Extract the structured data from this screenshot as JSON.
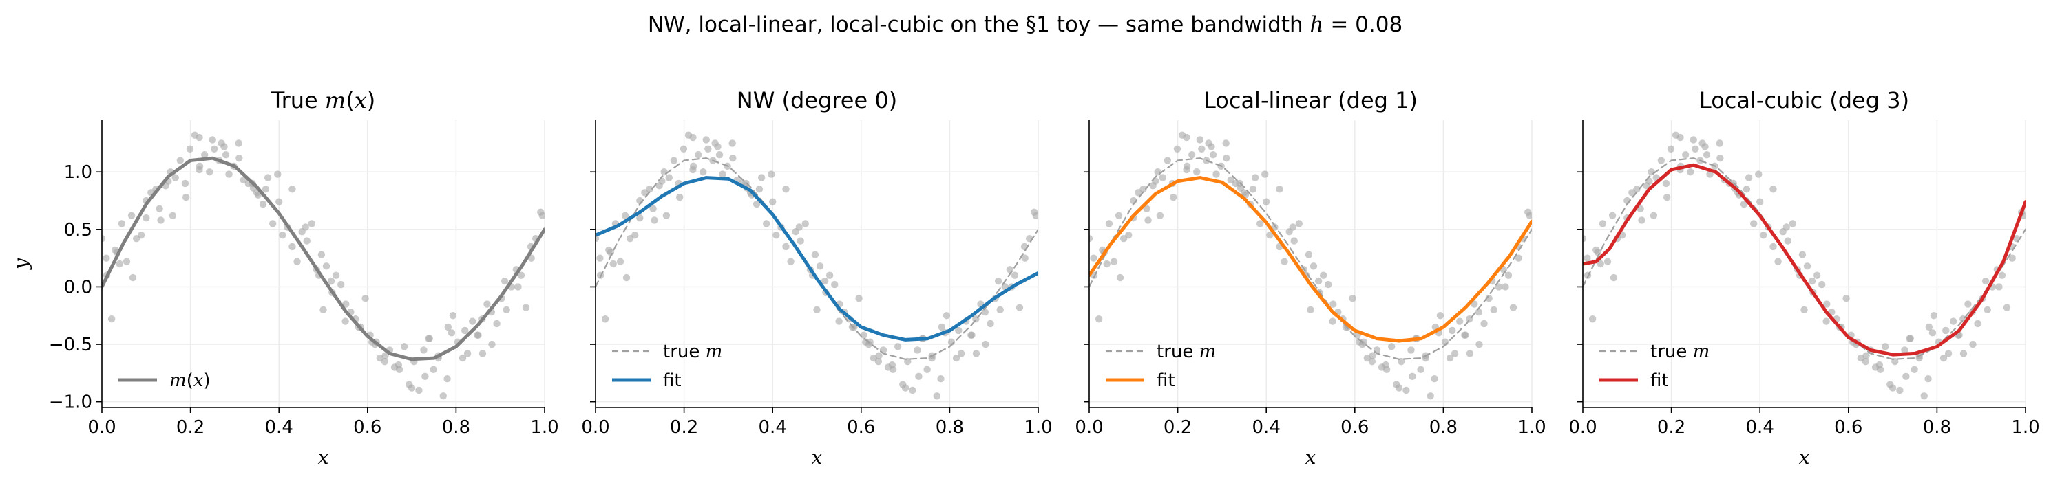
{
  "figure": {
    "suptitle": "NW, local-linear, local-cubic on the §1 toy — same bandwidth h = 0.08"
  },
  "chart_data": [
    {
      "type": "line",
      "title": "True m(x)",
      "xlabel": "x",
      "ylabel": "y",
      "xlim": [
        0,
        1
      ],
      "ylim": [
        -1.05,
        1.45
      ],
      "xticks": [
        "0.0",
        "0.2",
        "0.4",
        "0.6",
        "0.8",
        "1.0"
      ],
      "yticks": [
        "−1.0",
        "−0.5",
        "0.0",
        "0.5",
        "1.0"
      ],
      "grid": true,
      "legend_position": "lower-left",
      "series": [
        {
          "name": "m(x)",
          "color": "#808080",
          "style": "solid",
          "x": [
            0,
            0.05,
            0.1,
            0.15,
            0.2,
            0.25,
            0.3,
            0.35,
            0.4,
            0.45,
            0.5,
            0.55,
            0.6,
            0.65,
            0.7,
            0.75,
            0.8,
            0.85,
            0.9,
            0.95,
            1.0
          ],
          "y": [
            0.0,
            0.39,
            0.72,
            0.96,
            1.1,
            1.12,
            1.05,
            0.87,
            0.64,
            0.36,
            0.07,
            -0.21,
            -0.43,
            -0.58,
            -0.63,
            -0.62,
            -0.52,
            -0.33,
            -0.09,
            0.19,
            0.5
          ]
        }
      ]
    },
    {
      "type": "line",
      "title": "NW (degree 0)",
      "xlabel": "x",
      "xlim": [
        0,
        1
      ],
      "ylim": [
        -1.05,
        1.45
      ],
      "xticks": [
        "0.0",
        "0.2",
        "0.4",
        "0.6",
        "0.8",
        "1.0"
      ],
      "grid": true,
      "legend_position": "lower-left",
      "series": [
        {
          "name": "true m",
          "color": "#a0a0a0",
          "style": "dashed",
          "x": [
            0,
            0.05,
            0.1,
            0.15,
            0.2,
            0.25,
            0.3,
            0.35,
            0.4,
            0.45,
            0.5,
            0.55,
            0.6,
            0.65,
            0.7,
            0.75,
            0.8,
            0.85,
            0.9,
            0.95,
            1.0
          ],
          "y": [
            0.0,
            0.39,
            0.72,
            0.96,
            1.1,
            1.12,
            1.05,
            0.87,
            0.64,
            0.36,
            0.07,
            -0.21,
            -0.43,
            -0.58,
            -0.63,
            -0.62,
            -0.52,
            -0.33,
            -0.09,
            0.19,
            0.5
          ]
        },
        {
          "name": "fit",
          "color": "#1f77b4",
          "style": "solid",
          "x": [
            0,
            0.05,
            0.1,
            0.15,
            0.2,
            0.25,
            0.3,
            0.35,
            0.4,
            0.45,
            0.5,
            0.55,
            0.6,
            0.65,
            0.7,
            0.75,
            0.8,
            0.85,
            0.9,
            0.95,
            1.0
          ],
          "y": [
            0.45,
            0.53,
            0.65,
            0.79,
            0.9,
            0.95,
            0.94,
            0.84,
            0.63,
            0.36,
            0.07,
            -0.19,
            -0.35,
            -0.42,
            -0.46,
            -0.45,
            -0.38,
            -0.25,
            -0.1,
            0.02,
            0.12
          ]
        }
      ]
    },
    {
      "type": "line",
      "title": "Local-linear (deg 1)",
      "xlabel": "x",
      "xlim": [
        0,
        1
      ],
      "ylim": [
        -1.05,
        1.45
      ],
      "xticks": [
        "0.0",
        "0.2",
        "0.4",
        "0.6",
        "0.8",
        "1.0"
      ],
      "grid": true,
      "legend_position": "lower-left",
      "series": [
        {
          "name": "true m",
          "color": "#a0a0a0",
          "style": "dashed",
          "x": [
            0,
            0.05,
            0.1,
            0.15,
            0.2,
            0.25,
            0.3,
            0.35,
            0.4,
            0.45,
            0.5,
            0.55,
            0.6,
            0.65,
            0.7,
            0.75,
            0.8,
            0.85,
            0.9,
            0.95,
            1.0
          ],
          "y": [
            0.0,
            0.39,
            0.72,
            0.96,
            1.1,
            1.12,
            1.05,
            0.87,
            0.64,
            0.36,
            0.07,
            -0.21,
            -0.43,
            -0.58,
            -0.63,
            -0.62,
            -0.52,
            -0.33,
            -0.09,
            0.19,
            0.5
          ]
        },
        {
          "name": "fit",
          "color": "#ff7f0e",
          "style": "solid",
          "x": [
            0,
            0.05,
            0.1,
            0.15,
            0.2,
            0.25,
            0.3,
            0.35,
            0.4,
            0.45,
            0.5,
            0.55,
            0.6,
            0.65,
            0.7,
            0.75,
            0.8,
            0.85,
            0.9,
            0.95,
            1.0
          ],
          "y": [
            0.1,
            0.38,
            0.62,
            0.81,
            0.92,
            0.95,
            0.91,
            0.77,
            0.56,
            0.3,
            0.02,
            -0.22,
            -0.38,
            -0.45,
            -0.47,
            -0.45,
            -0.35,
            -0.18,
            0.03,
            0.27,
            0.57
          ]
        }
      ]
    },
    {
      "type": "line",
      "title": "Local-cubic (deg 3)",
      "xlabel": "x",
      "xlim": [
        0,
        1
      ],
      "ylim": [
        -1.05,
        1.45
      ],
      "xticks": [
        "0.0",
        "0.2",
        "0.4",
        "0.6",
        "0.8",
        "1.0"
      ],
      "grid": true,
      "legend_position": "lower-left",
      "series": [
        {
          "name": "true m",
          "color": "#a0a0a0",
          "style": "dashed",
          "x": [
            0,
            0.05,
            0.1,
            0.15,
            0.2,
            0.25,
            0.3,
            0.35,
            0.4,
            0.45,
            0.5,
            0.55,
            0.6,
            0.65,
            0.7,
            0.75,
            0.8,
            0.85,
            0.9,
            0.95,
            1.0
          ],
          "y": [
            0.0,
            0.39,
            0.72,
            0.96,
            1.1,
            1.12,
            1.05,
            0.87,
            0.64,
            0.36,
            0.07,
            -0.21,
            -0.43,
            -0.58,
            -0.63,
            -0.62,
            -0.52,
            -0.33,
            -0.09,
            0.19,
            0.5
          ]
        },
        {
          "name": "fit",
          "color": "#d62728",
          "style": "solid",
          "x": [
            0,
            0.03,
            0.06,
            0.1,
            0.15,
            0.2,
            0.25,
            0.3,
            0.35,
            0.4,
            0.45,
            0.5,
            0.55,
            0.6,
            0.65,
            0.7,
            0.75,
            0.8,
            0.85,
            0.9,
            0.95,
            1.0
          ],
          "y": [
            0.2,
            0.22,
            0.33,
            0.58,
            0.85,
            1.02,
            1.06,
            1.0,
            0.84,
            0.62,
            0.35,
            0.06,
            -0.22,
            -0.44,
            -0.55,
            -0.59,
            -0.58,
            -0.52,
            -0.38,
            -0.12,
            0.22,
            0.74
          ]
        }
      ]
    }
  ],
  "scatter": {
    "color": "#aaaaaa",
    "x": [
      0.0,
      0.011,
      0.022,
      0.034,
      0.045,
      0.056,
      0.067,
      0.078,
      0.089,
      0.1,
      0.111,
      0.122,
      0.133,
      0.144,
      0.155,
      0.166,
      0.177,
      0.188,
      0.199,
      0.21,
      0.221,
      0.232,
      0.243,
      0.254,
      0.265,
      0.276,
      0.287,
      0.298,
      0.309,
      0.32,
      0.331,
      0.342,
      0.353,
      0.364,
      0.375,
      0.386,
      0.397,
      0.408,
      0.419,
      0.43,
      0.441,
      0.452,
      0.463,
      0.474,
      0.485,
      0.496,
      0.507,
      0.518,
      0.529,
      0.54,
      0.551,
      0.562,
      0.573,
      0.584,
      0.595,
      0.606,
      0.617,
      0.628,
      0.639,
      0.65,
      0.661,
      0.672,
      0.683,
      0.694,
      0.705,
      0.716,
      0.727,
      0.738,
      0.749,
      0.76,
      0.771,
      0.782,
      0.793,
      0.804,
      0.815,
      0.826,
      0.837,
      0.848,
      0.859,
      0.87,
      0.881,
      0.892,
      0.903,
      0.914,
      0.925,
      0.936,
      0.947,
      0.958,
      0.969,
      0.98,
      0.991,
      0.01,
      0.04,
      0.07,
      0.1,
      0.13,
      0.16,
      0.19,
      0.22,
      0.25,
      0.28,
      0.31,
      0.34,
      0.37,
      0.4,
      0.43,
      0.46,
      0.49,
      0.52,
      0.55,
      0.58,
      0.61,
      0.64,
      0.67,
      0.7,
      0.73,
      0.76,
      0.79,
      0.82,
      0.85,
      0.88,
      0.91,
      0.94,
      0.97,
      0.995,
      0.03,
      0.15,
      0.27,
      0.35,
      0.62,
      0.74,
      0.86,
      0.5,
      0.22,
      0.78
    ],
    "y": [
      0.42,
      0.1,
      -0.28,
      0.3,
      0.55,
      0.22,
      0.62,
      0.42,
      0.45,
      0.75,
      0.82,
      0.85,
      0.58,
      0.88,
      1.0,
      0.95,
      1.1,
      0.9,
      1.2,
      1.32,
      1.05,
      1.15,
      1.0,
      1.2,
      1.1,
      1.22,
      0.98,
      1.05,
      1.25,
      0.93,
      0.9,
      0.86,
      0.8,
      0.72,
      0.95,
      0.55,
      0.98,
      0.45,
      0.52,
      0.85,
      0.22,
      0.48,
      0.4,
      0.55,
      0.15,
      0.28,
      0.18,
      0.05,
      0.1,
      0.02,
      -0.15,
      -0.22,
      -0.28,
      -0.35,
      -0.1,
      -0.42,
      -0.5,
      -0.62,
      -0.65,
      -0.55,
      -0.7,
      -0.72,
      -0.52,
      -0.85,
      -0.65,
      -0.9,
      -0.55,
      -0.45,
      -0.72,
      -0.6,
      -0.95,
      -0.35,
      -0.25,
      -0.48,
      -0.62,
      -0.58,
      -0.3,
      -0.42,
      -0.28,
      -0.15,
      -0.5,
      -0.32,
      -0.1,
      -0.2,
      0.0,
      0.15,
      0.1,
      -0.18,
      0.35,
      0.42,
      0.65,
      0.25,
      0.2,
      0.08,
      0.6,
      0.68,
      0.62,
      0.78,
      1.02,
      1.28,
      1.15,
      1.12,
      0.9,
      0.85,
      0.74,
      0.35,
      0.52,
      0.1,
      -0.05,
      -0.3,
      -0.35,
      -0.48,
      -0.6,
      -0.68,
      -0.88,
      -0.78,
      -0.62,
      -0.4,
      -0.38,
      -0.42,
      -0.22,
      0.05,
      0.0,
      0.25,
      0.62,
      0.32,
      0.92,
      1.25,
      0.82,
      -0.48,
      -0.45,
      -0.58,
      -0.2,
      1.3,
      -0.8
    ]
  }
}
